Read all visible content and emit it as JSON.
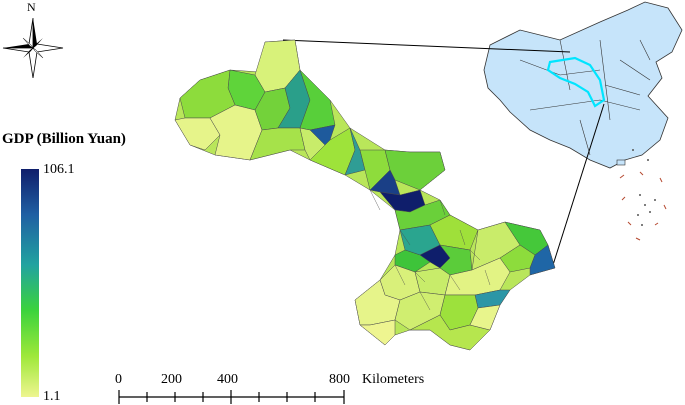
{
  "north_arrow": {
    "label": "N",
    "icon": "compass-rose-icon"
  },
  "legend": {
    "title": "GDP (Billion Yuan)",
    "max": "106.1",
    "min": "1.1",
    "colors": [
      "#0f1e6b",
      "#1f5fa3",
      "#21a3a0",
      "#3cd33c",
      "#9ee83a",
      "#eef590"
    ]
  },
  "scale_bar": {
    "ticks": [
      "0",
      "200",
      "400",
      "800"
    ],
    "unit": "Kilometers"
  },
  "inset": {
    "china_fill": "#c6e4fa",
    "highlight_color": "#00e5ff"
  }
}
